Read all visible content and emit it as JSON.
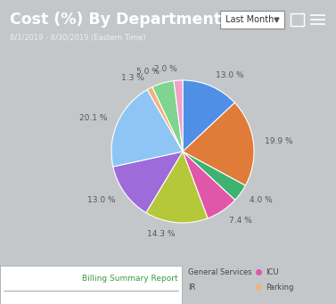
{
  "chart_data": {
    "type": "pie",
    "title": "Cost (%) By Department",
    "subtitle": "8/1/2019 - 8/30/2019 (Eastern Time)",
    "values": [
      13.0,
      19.9,
      4.0,
      7.4,
      14.3,
      13.0,
      20.1,
      1.3,
      5.0,
      2.0
    ],
    "value_labels": [
      "13.0 %",
      "19.9 %",
      "4.0 %",
      "7.4 %",
      "14.3 %",
      "13.0 %",
      "20.1 %",
      "1.3 %",
      "5.0 %",
      "2.0 %"
    ],
    "colors": [
      "#4f8fe6",
      "#e07b39",
      "#3cb371",
      "#e056a8",
      "#b5c83a",
      "#9f6ad9",
      "#8ec5f5",
      "#f5b27a",
      "#7fd48f",
      "#f2a0c8"
    ],
    "data_labels": true
  },
  "controls": {
    "dropdown": "Last Month"
  },
  "overlay": {
    "title": "Billing Summary Report",
    "legend_items": [
      {
        "name": "General Services"
      },
      {
        "name": "ICU",
        "color": "#e056a8"
      },
      {
        "name": "IR"
      },
      {
        "name": "Parking",
        "color": "#f5b27a"
      }
    ]
  }
}
